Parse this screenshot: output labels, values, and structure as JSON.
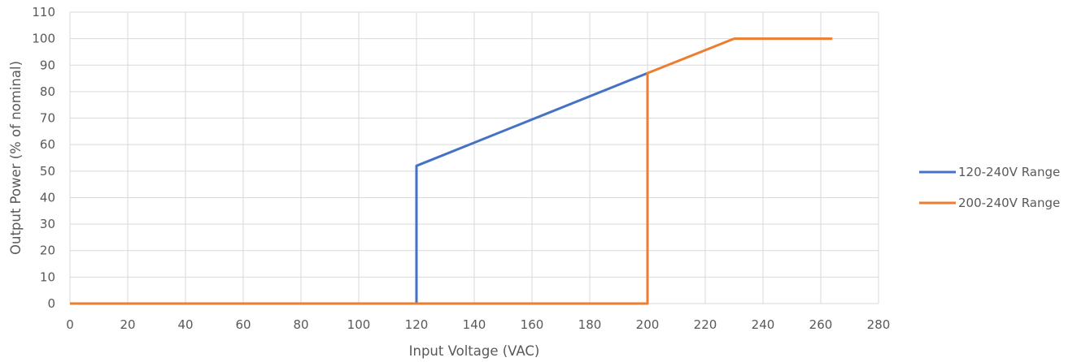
{
  "chart_data": {
    "type": "line",
    "title": "",
    "xlabel": "Input Voltage (VAC)",
    "ylabel": "Output Power (% of nominal)",
    "xlim": [
      0,
      280
    ],
    "ylim": [
      0,
      110
    ],
    "xticks": [
      0,
      20,
      40,
      60,
      80,
      100,
      120,
      140,
      160,
      180,
      200,
      220,
      240,
      260,
      280
    ],
    "yticks": [
      0,
      10,
      20,
      30,
      40,
      50,
      60,
      70,
      80,
      90,
      100,
      110
    ],
    "grid": true,
    "legend_position": "right",
    "series": [
      {
        "name": "120-240V Range",
        "color": "#4472C4",
        "points": [
          [
            0,
            0
          ],
          [
            120,
            0
          ],
          [
            120,
            52
          ],
          [
            200,
            87
          ]
        ]
      },
      {
        "name": "200-240V Range",
        "color": "#ED7D31",
        "points": [
          [
            0,
            0
          ],
          [
            200,
            0
          ],
          [
            200,
            87
          ],
          [
            230,
            100
          ],
          [
            264,
            100
          ]
        ]
      }
    ]
  }
}
